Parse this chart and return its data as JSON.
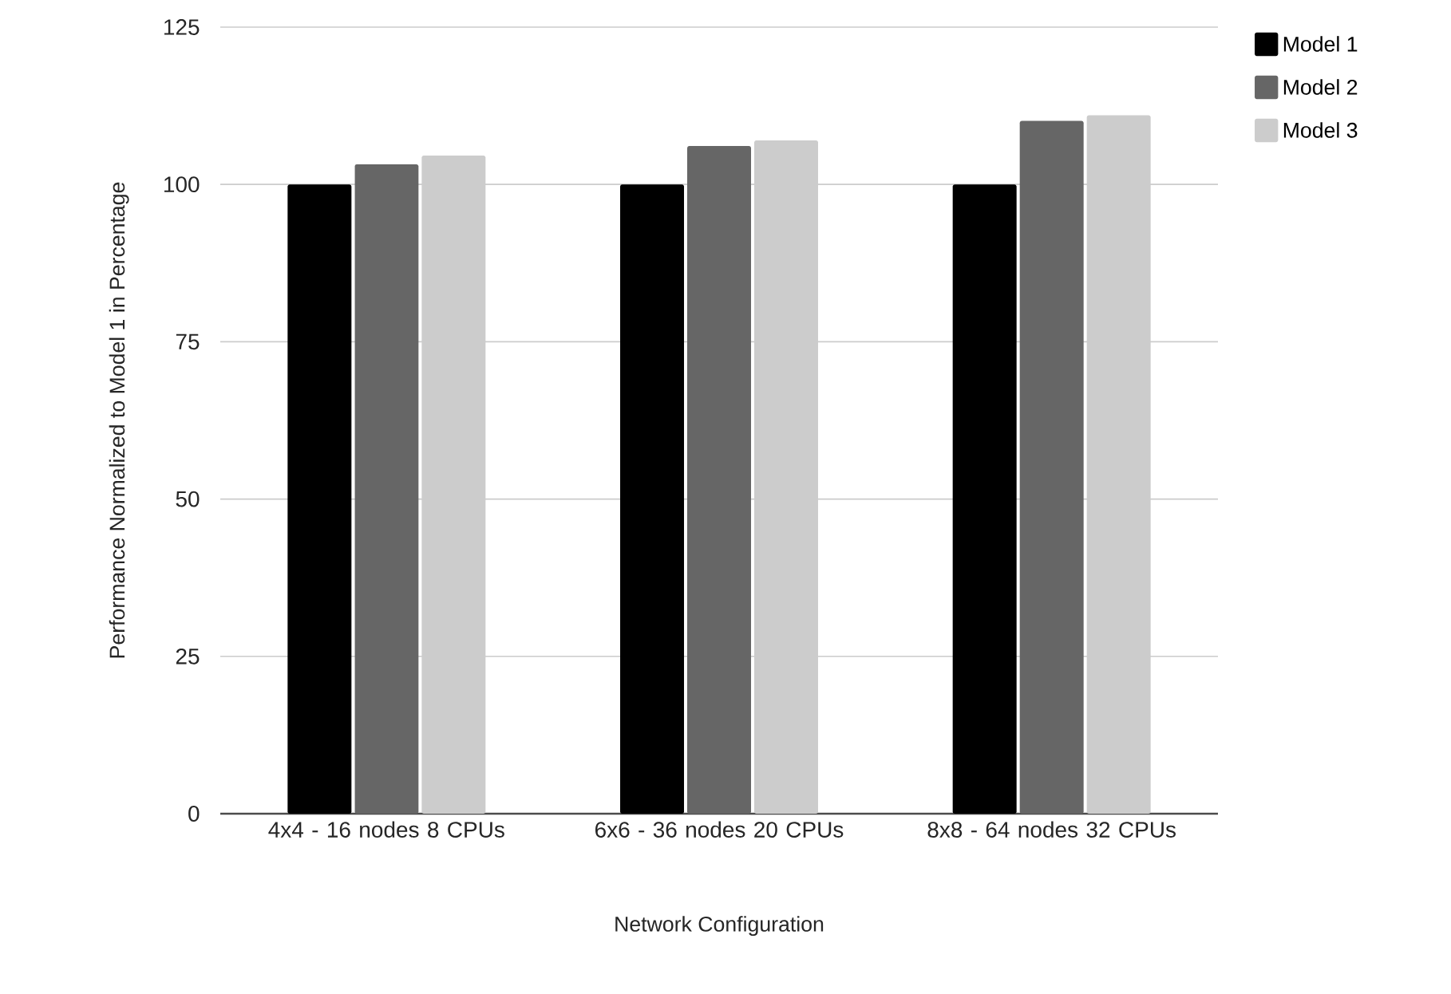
{
  "chart_data": {
    "type": "bar",
    "xlabel": "Network Configuration",
    "ylabel": "Performance Normalized to Model 1 in Percentage",
    "categories": [
      "4x4 - 16 nodes 8 CPUs",
      "6x6 - 36 nodes 20 CPUs",
      "8x8 - 64 nodes 32 CPUs"
    ],
    "series": [
      {
        "name": "Model 1",
        "color": "#000000",
        "values": [
          100,
          100,
          100
        ]
      },
      {
        "name": "Model 2",
        "color": "#666666",
        "values": [
          103.2,
          106.1,
          110.1
        ]
      },
      {
        "name": "Model 3",
        "color": "#cccccc",
        "values": [
          104.6,
          107.0,
          111.0
        ]
      }
    ],
    "ylim": [
      0,
      125
    ],
    "yticks": [
      0,
      25,
      50,
      75,
      100,
      125
    ],
    "grid": "y",
    "legend": "top right"
  }
}
